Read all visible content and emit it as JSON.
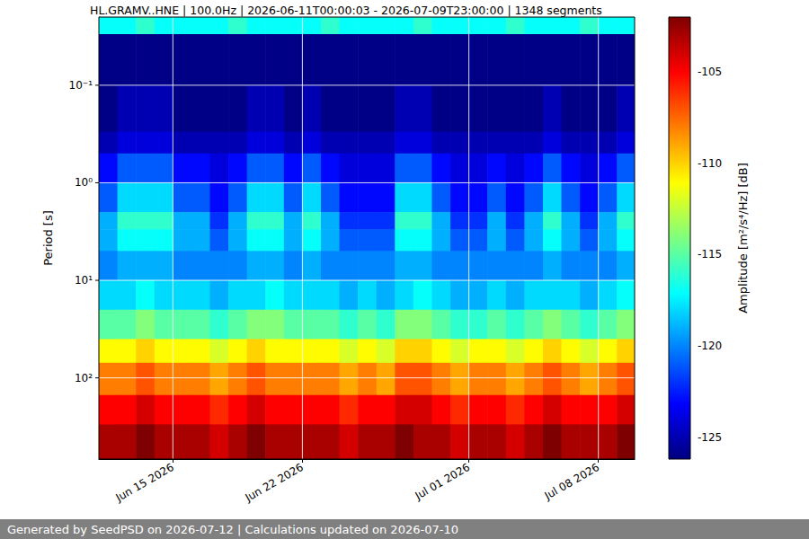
{
  "chart_data": {
    "type": "heatmap",
    "title": "HL.GRAMV..HNE | 100.0Hz | 2026-06-11T00:00:03 - 2026-07-09T23:00:00 | 1348 segments",
    "footer": "Generated by SeedPSD on 2026-07-12 | Calculations updated on 2026-07-10",
    "ylabel": "Period [s]",
    "log": "y",
    "grid": true,
    "xlim": [
      "2026-06-11T00:00:03",
      "2026-07-09T23:00:00"
    ],
    "xticks": [
      {
        "value": "2026-06-15",
        "label": "Jun 15 2026"
      },
      {
        "value": "2026-06-22",
        "label": "Jun 22 2026"
      },
      {
        "value": "2026-07-01",
        "label": "Jul 01 2026"
      },
      {
        "value": "2026-07-08",
        "label": "Jul 08 2026"
      }
    ],
    "ylim": [
      0.02,
      680
    ],
    "yticks": [
      {
        "value": 0.1,
        "label": "10⁻¹"
      },
      {
        "value": 1,
        "label": "10⁰"
      },
      {
        "value": 10,
        "label": "10¹"
      },
      {
        "value": 100,
        "label": "10²"
      }
    ],
    "x_edges": [
      "2026-06-11",
      "2026-06-12",
      "2026-06-13",
      "2026-06-14",
      "2026-06-15",
      "2026-06-16",
      "2026-06-17",
      "2026-06-18",
      "2026-06-19",
      "2026-06-20",
      "2026-06-21",
      "2026-06-22",
      "2026-06-23",
      "2026-06-24",
      "2026-06-25",
      "2026-06-26",
      "2026-06-27",
      "2026-06-28",
      "2026-06-29",
      "2026-06-30",
      "2026-07-01",
      "2026-07-02",
      "2026-07-03",
      "2026-07-04",
      "2026-07-05",
      "2026-07-06",
      "2026-07-07",
      "2026-07-08",
      "2026-07-09",
      "2026-07-10"
    ],
    "y_edges": [
      0.02,
      0.03,
      0.1,
      0.3,
      0.5,
      1,
      2,
      3,
      5,
      10,
      20,
      40,
      70,
      150,
      300,
      680
    ],
    "cells": [
      [
        -117,
        -117,
        -116,
        -117,
        -117,
        -117,
        -117,
        -116,
        -117,
        -117,
        -117,
        -117,
        -116,
        -117,
        -117,
        -117,
        -117,
        -116,
        -117,
        -117,
        -117,
        -117,
        -116,
        -117,
        -117,
        -117,
        -116,
        -117,
        -117
      ],
      [
        -126,
        -126,
        -126,
        -126,
        -126,
        -126,
        -126,
        -126,
        -126,
        -126,
        -126,
        -126,
        -126,
        -126,
        -126,
        -126,
        -126,
        -126,
        -126,
        -126,
        -126,
        -126,
        -126,
        -126,
        -126,
        -126,
        -126,
        -126,
        -126
      ],
      [
        -126,
        -125,
        -125,
        -125,
        -126,
        -126,
        -126,
        -126,
        -125,
        -125,
        -126,
        -125,
        -126,
        -126,
        -126,
        -126,
        -125,
        -125,
        -126,
        -126,
        -126,
        -126,
        -126,
        -126,
        -125,
        -126,
        -126,
        -126,
        -125
      ],
      [
        -125,
        -124,
        -124,
        -124,
        -125,
        -125,
        -125,
        -125,
        -124,
        -124,
        -125,
        -124,
        -125,
        -125,
        -125,
        -125,
        -124,
        -124,
        -125,
        -125,
        -125,
        -125,
        -125,
        -125,
        -124,
        -125,
        -125,
        -125,
        -124
      ],
      [
        -123,
        -121,
        -121,
        -121,
        -123,
        -123,
        -124,
        -123,
        -121,
        -121,
        -123,
        -121,
        -123,
        -124,
        -124,
        -124,
        -121,
        -121,
        -123,
        -124,
        -124,
        -123,
        -124,
        -123,
        -121,
        -123,
        -124,
        -123,
        -121
      ],
      [
        -121,
        -118,
        -118,
        -118,
        -121,
        -121,
        -123,
        -121,
        -118,
        -118,
        -121,
        -118,
        -121,
        -123,
        -123,
        -123,
        -118,
        -118,
        -121,
        -123,
        -123,
        -121,
        -123,
        -121,
        -118,
        -121,
        -123,
        -121,
        -118
      ],
      [
        -119,
        -116,
        -116,
        -116,
        -119,
        -119,
        -122,
        -119,
        -116,
        -116,
        -119,
        -116,
        -119,
        -122,
        -122,
        -122,
        -116,
        -116,
        -119,
        -122,
        -122,
        -119,
        -122,
        -119,
        -116,
        -119,
        -122,
        -119,
        -116
      ],
      [
        -119,
        -117,
        -117,
        -117,
        -119,
        -119,
        -121,
        -119,
        -117,
        -117,
        -119,
        -117,
        -119,
        -121,
        -121,
        -121,
        -117,
        -117,
        -119,
        -121,
        -121,
        -119,
        -121,
        -119,
        -117,
        -119,
        -121,
        -119,
        -117
      ],
      [
        -120,
        -119,
        -119,
        -119,
        -120,
        -120,
        -120,
        -120,
        -119,
        -119,
        -120,
        -119,
        -120,
        -120,
        -120,
        -120,
        -119,
        -119,
        -120,
        -120,
        -120,
        -120,
        -120,
        -120,
        -119,
        -120,
        -120,
        -120,
        -119
      ],
      [
        -118,
        -118,
        -117,
        -118,
        -118,
        -118,
        -119,
        -118,
        -118,
        -117,
        -118,
        -118,
        -118,
        -119,
        -118,
        -119,
        -118,
        -117,
        -118,
        -119,
        -119,
        -118,
        -119,
        -118,
        -118,
        -118,
        -119,
        -118,
        -117
      ],
      [
        -115,
        -115,
        -114,
        -115,
        -115,
        -115,
        -116,
        -115,
        -114,
        -114,
        -115,
        -115,
        -115,
        -116,
        -115,
        -116,
        -114,
        -114,
        -115,
        -116,
        -116,
        -115,
        -116,
        -115,
        -114,
        -115,
        -116,
        -115,
        -114
      ],
      [
        -111,
        -111,
        -110,
        -111,
        -111,
        -111,
        -112,
        -111,
        -110,
        -111,
        -111,
        -111,
        -111,
        -112,
        -111,
        -112,
        -110,
        -110,
        -111,
        -112,
        -111,
        -111,
        -112,
        -111,
        -110,
        -111,
        -112,
        -111,
        -110
      ],
      [
        -108,
        -108,
        -107,
        -108,
        -108,
        -108,
        -109,
        -108,
        -107,
        -108,
        -108,
        -108,
        -108,
        -109,
        -108,
        -109,
        -107,
        -107,
        -108,
        -109,
        -108,
        -108,
        -109,
        -108,
        -107,
        -108,
        -109,
        -108,
        -107
      ],
      [
        -105,
        -105,
        -104,
        -105,
        -105,
        -105,
        -106,
        -105,
        -104,
        -105,
        -105,
        -105,
        -105,
        -106,
        -105,
        -105,
        -104,
        -104,
        -105,
        -106,
        -105,
        -105,
        -106,
        -105,
        -104,
        -105,
        -105,
        -105,
        -104
      ],
      [
        -103,
        -103,
        -102,
        -103,
        -103,
        -103,
        -104,
        -103,
        -102,
        -103,
        -103,
        -103,
        -103,
        -104,
        -103,
        -103,
        -102,
        -103,
        -103,
        -104,
        -103,
        -103,
        -104,
        -103,
        -102,
        -103,
        -103,
        -103,
        -102
      ]
    ],
    "colorbar": {
      "label": "Amplitude [m²/s⁴/Hz] [dB]",
      "range": [
        -126.2,
        -102
      ],
      "ticks": [
        -125,
        -120,
        -115,
        -110,
        -105
      ]
    }
  }
}
